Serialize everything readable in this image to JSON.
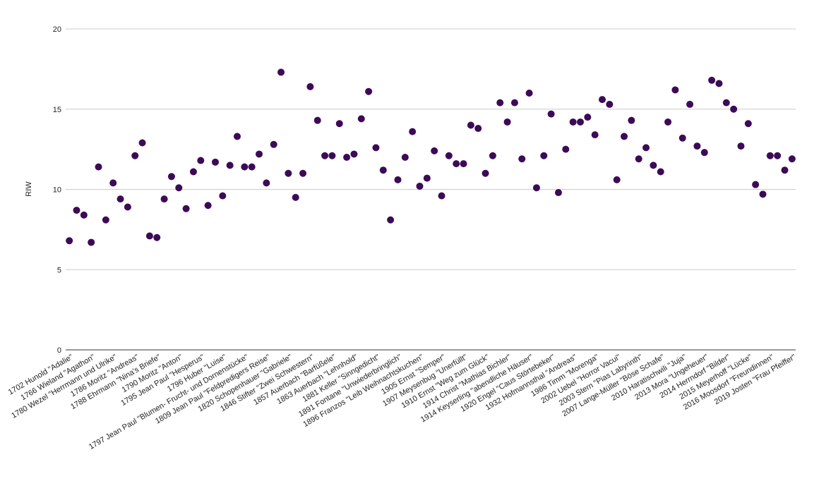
{
  "chart_data": {
    "type": "scatter",
    "y_label": "RIW",
    "color": "#3c0a57",
    "grid": true,
    "ylim": [
      0,
      20
    ],
    "yticks": [
      0,
      5,
      10,
      15,
      20
    ],
    "categories": [
      "1702 Hunold \"Adalie\"",
      null,
      null,
      "1766 Wieland \"Agathon\"",
      null,
      null,
      "1780 Wezel \"Herrmann und Ulrike\"",
      null,
      null,
      "1786 Moritz \"Andreas\"",
      null,
      null,
      "1788 Ehrmann \"Nina's Briefe\"",
      null,
      null,
      "1790 Moritz \"Anton\"",
      null,
      null,
      "1795 Jean Paul \"Hesperus\"",
      null,
      null,
      "1796 Huber \"Luise\"",
      null,
      null,
      "1797 Jean Paul \"Blumen- Frucht- und Dornenstücke\"",
      null,
      null,
      "1809 Jean Paul \"Feldpredigers Reise\"",
      null,
      null,
      "1820 Schopenhauer \"Gabriele\"",
      null,
      null,
      "1846 Stifter \"Zwei Schwestern\"",
      null,
      null,
      "1857 Auerbach \"Barfüßele\"",
      null,
      null,
      "1863 Auerbach \"Lehnhold\"",
      null,
      null,
      "1881 Keller \"Sinngedicht\"",
      null,
      null,
      "1891 Fontane \"Unwiederbringlich\"",
      null,
      null,
      "1896 Franzos \"Leib Weihnachtskuchen\"",
      null,
      null,
      "1905 Ernst \"Semper\"",
      null,
      null,
      "1907 Meysenbug \"Unerfüllt\"",
      null,
      null,
      "1910 Ernst \"Weg zum Glück\"",
      null,
      null,
      "1914 Christ \"Mathias Bichler\"",
      null,
      null,
      "1914 Keyserling \"abendliche Häuser\"",
      null,
      null,
      "1920 Engel \"Caus Störtebeker\"",
      null,
      null,
      "1932 Hofmannsthal \"Andreas\"",
      null,
      null,
      "1986 Timm \"Morenga\"",
      null,
      null,
      "2002 Uebel \"Horror Vacui\"",
      null,
      null,
      "2003 Stern \"Pias Labyrinth\"",
      null,
      null,
      "2007 Lange-Müller \"Böse Schafe\"",
      null,
      null,
      "2010 Haratischwili \"Juja\"",
      null,
      null,
      "2013 Mora \"Ungeheuer\"",
      null,
      null,
      "2014 Herrndorf \"Bilder\"",
      null,
      null,
      "2015 Meyerhoff \"Lücke\"",
      null,
      null,
      "2016 Moosdorf \"Freundinnen\"",
      null,
      null,
      "2019 Josten \"Frau Pfeiffer\""
    ],
    "values": [
      6.8,
      8.7,
      8.4,
      6.7,
      11.4,
      8.1,
      10.4,
      9.4,
      8.9,
      12.1,
      12.9,
      7.1,
      7.0,
      9.4,
      10.8,
      10.1,
      8.8,
      11.1,
      11.8,
      9.0,
      11.7,
      9.6,
      11.5,
      13.3,
      11.4,
      11.4,
      12.2,
      10.4,
      12.8,
      17.3,
      11.0,
      9.5,
      11.0,
      16.4,
      14.3,
      12.1,
      12.1,
      14.1,
      12.0,
      12.2,
      14.4,
      16.1,
      12.6,
      11.2,
      8.1,
      10.6,
      12.0,
      13.6,
      10.2,
      10.7,
      12.4,
      9.6,
      12.1,
      11.6,
      11.6,
      14.0,
      13.8,
      11.0,
      12.1,
      15.4,
      14.2,
      15.4,
      11.9,
      16.0,
      10.1,
      12.1,
      14.7,
      9.8,
      12.5,
      14.2,
      14.2,
      14.5,
      13.4,
      15.6,
      15.3,
      10.6,
      13.3,
      14.3,
      11.9,
      12.6,
      11.5,
      11.1,
      14.2,
      16.2,
      13.2,
      15.3,
      12.7,
      12.3,
      16.8,
      16.6,
      15.4,
      15.0,
      12.7,
      14.1,
      10.3,
      9.7,
      12.1,
      12.1,
      11.2,
      11.9
    ]
  }
}
